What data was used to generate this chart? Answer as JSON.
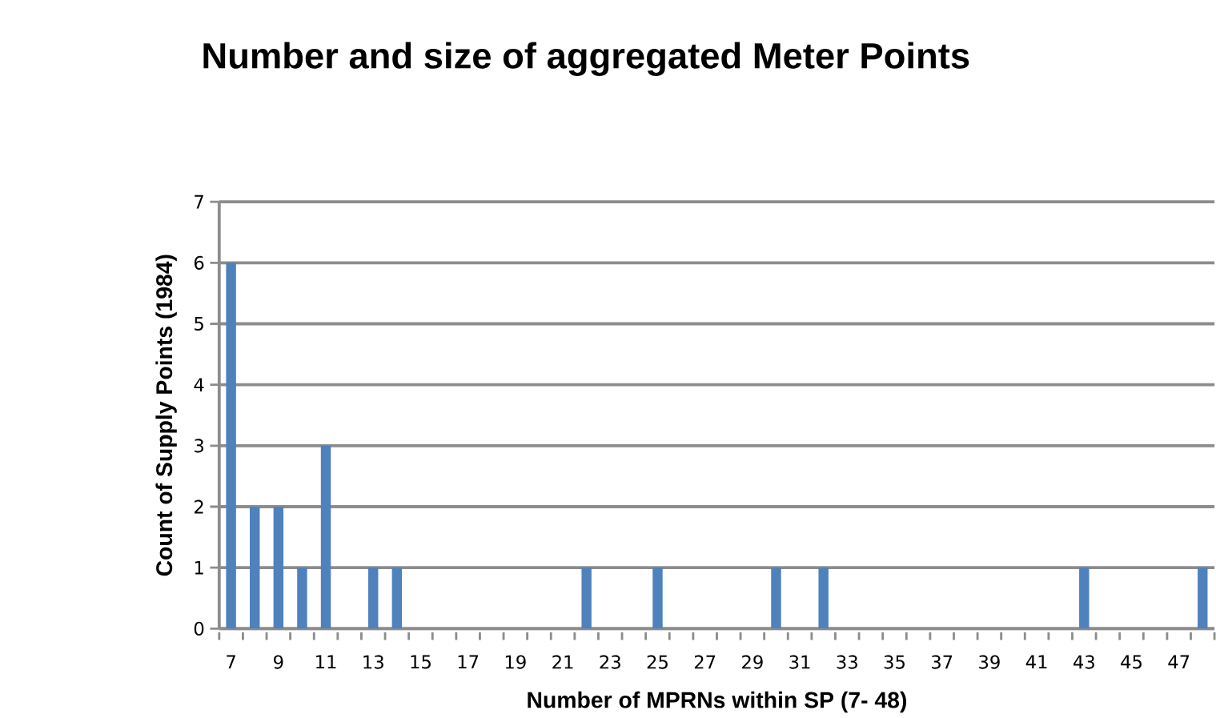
{
  "chart_data": {
    "type": "bar",
    "title": "Number and  size of aggregated Meter Points",
    "xlabel": "Number of MPRNs within SP (7- 48)",
    "ylabel": "Count of Supply Points (1984)",
    "categories": [
      "7",
      null,
      "9",
      null,
      "11",
      null,
      "13",
      null,
      "15",
      null,
      "17",
      null,
      "19",
      null,
      "21",
      null,
      "23",
      null,
      "25",
      null,
      "27",
      null,
      "29",
      null,
      "31",
      null,
      "33",
      null,
      "35",
      null,
      "37",
      null,
      "39",
      null,
      "41",
      null,
      "43",
      null,
      "45",
      null,
      "47",
      null
    ],
    "values": [
      6,
      2,
      2,
      1,
      3,
      0,
      1,
      1,
      0,
      0,
      0,
      0,
      0,
      0,
      0,
      1,
      0,
      0,
      1,
      0,
      0,
      0,
      0,
      1,
      0,
      1,
      0,
      0,
      0,
      0,
      0,
      0,
      0,
      0,
      0,
      0,
      1,
      0,
      0,
      0,
      0,
      1
    ],
    "color": "#4f81bd",
    "ylim": [
      0,
      7
    ],
    "yticks": [
      0,
      1,
      2,
      3,
      4,
      5,
      6,
      7
    ],
    "grid": "y"
  }
}
